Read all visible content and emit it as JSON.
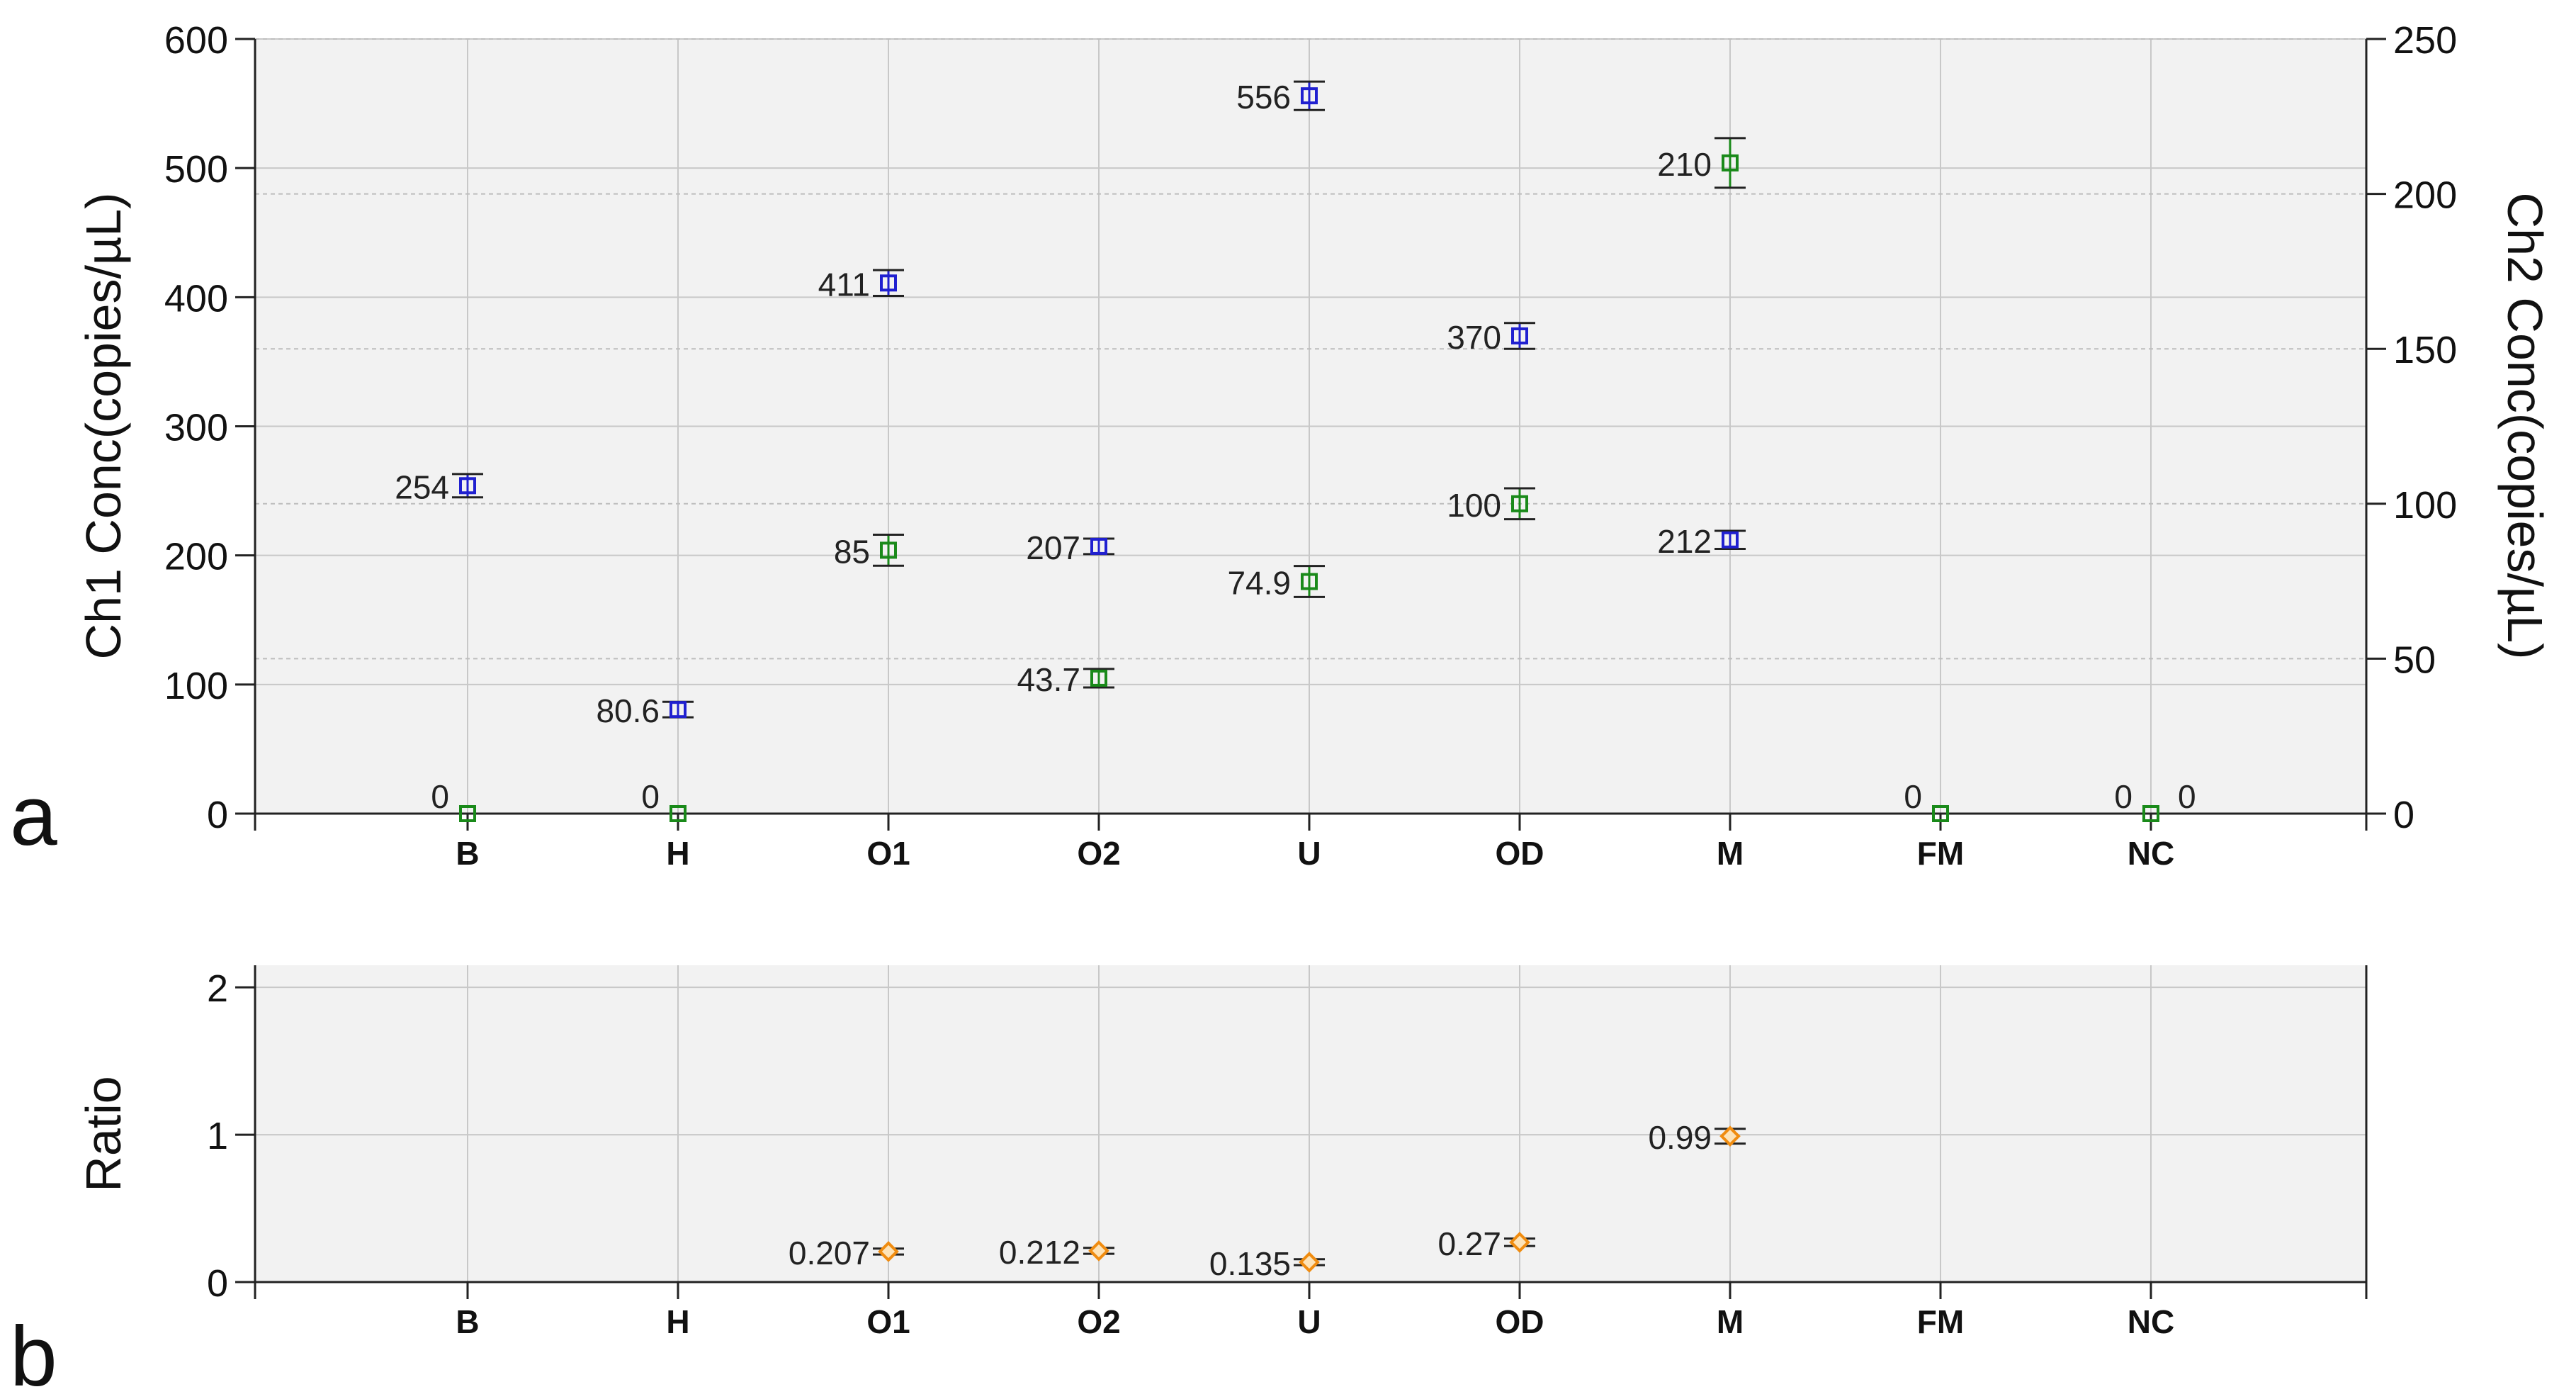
{
  "chart_data": [
    {
      "panel": "a",
      "type": "scatter",
      "categories": [
        "B",
        "H",
        "O1",
        "O2",
        "U",
        "OD",
        "M",
        "FM",
        "NC"
      ],
      "ylabel": "Ch1 Conc(copies/µL)",
      "y2label": "Ch2 Conc(copies/µL)",
      "ylim": [
        0,
        600
      ],
      "y2lim": [
        0,
        250
      ],
      "yticks": [
        0,
        100,
        200,
        300,
        400,
        500,
        600
      ],
      "y2ticks": [
        0,
        50,
        100,
        150,
        200,
        250
      ],
      "grid": true,
      "series": [
        {
          "axis": "left",
          "color": "#2020d0",
          "marker": "square",
          "values": [
            254,
            80.6,
            411,
            207,
            556,
            370,
            212,
            0,
            0
          ],
          "errors": [
            9,
            6,
            10,
            6,
            11,
            10,
            7,
            0,
            0
          ],
          "labels": [
            "254",
            "80.6",
            "411",
            "207",
            "556",
            "370",
            "212",
            "",
            "0"
          ]
        },
        {
          "axis": "right",
          "color": "#1a8a1a",
          "marker": "square",
          "values": [
            0,
            0,
            85,
            43.7,
            74.9,
            100,
            210,
            0,
            0
          ],
          "errors": [
            0,
            0,
            5,
            3,
            5,
            5,
            8,
            0,
            0
          ],
          "labels": [
            "0",
            "0",
            "85",
            "43.7",
            "74.9",
            "100",
            "210",
            "0",
            "0"
          ]
        }
      ]
    },
    {
      "panel": "b",
      "type": "scatter",
      "categories": [
        "B",
        "H",
        "O1",
        "O2",
        "U",
        "OD",
        "M",
        "FM",
        "NC"
      ],
      "ylabel": "Ratio",
      "ylim": [
        0,
        2.15
      ],
      "yticks": [
        0,
        1,
        2
      ],
      "grid": true,
      "series": [
        {
          "color": "#f08c10",
          "marker": "diamond",
          "values": [
            null,
            null,
            0.207,
            0.212,
            0.135,
            0.27,
            0.99,
            null,
            null
          ],
          "errors": [
            0,
            0,
            0.02,
            0.02,
            0.02,
            0.025,
            0.05,
            0,
            0
          ],
          "labels": [
            "",
            "",
            "0.207",
            "0.212",
            "0.135",
            "0.27",
            "0.99",
            "",
            ""
          ]
        }
      ]
    }
  ],
  "panel_letters": [
    "a",
    "b"
  ]
}
